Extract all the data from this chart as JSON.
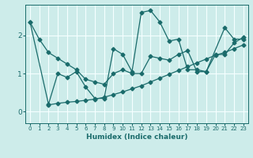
{
  "xlabel": "Humidex (Indice chaleur)",
  "xlim": [
    -0.5,
    23.5
  ],
  "ylim": [
    -0.3,
    2.8
  ],
  "yticks": [
    0,
    1,
    2
  ],
  "xticks": [
    0,
    1,
    2,
    3,
    4,
    5,
    6,
    7,
    8,
    9,
    10,
    11,
    12,
    13,
    14,
    15,
    16,
    17,
    18,
    19,
    20,
    21,
    22,
    23
  ],
  "background_color": "#cdecea",
  "grid_color": "#f5ffff",
  "line_color": "#1a6b6b",
  "line1_x": [
    0,
    1,
    2,
    3,
    4,
    5,
    6,
    7,
    8,
    9,
    10,
    11,
    12,
    13,
    14,
    15,
    16,
    17,
    18,
    19,
    20,
    21,
    22,
    23
  ],
  "line1_y": [
    2.35,
    1.9,
    1.55,
    1.4,
    1.25,
    1.1,
    0.85,
    0.78,
    0.72,
    1.0,
    1.1,
    1.0,
    1.0,
    1.45,
    1.4,
    1.35,
    1.5,
    1.6,
    1.05,
    1.05,
    1.5,
    1.5,
    1.8,
    1.95
  ],
  "line2_x": [
    0,
    2,
    3,
    4,
    5,
    6,
    7,
    8,
    9,
    10,
    11,
    12,
    13,
    14,
    15,
    16,
    17,
    18,
    19,
    21,
    22,
    23
  ],
  "line2_y": [
    2.35,
    0.2,
    1.0,
    0.9,
    1.05,
    0.65,
    0.35,
    0.35,
    1.65,
    1.5,
    1.05,
    2.6,
    2.65,
    2.35,
    1.85,
    1.9,
    1.1,
    1.1,
    1.05,
    2.2,
    1.9,
    1.9
  ],
  "line3_x": [
    2,
    3,
    4,
    5,
    6,
    7,
    8,
    9,
    10,
    11,
    12,
    13,
    14,
    15,
    16,
    17,
    18,
    19,
    20,
    21,
    22,
    23
  ],
  "line3_y": [
    0.18,
    0.22,
    0.25,
    0.27,
    0.3,
    0.33,
    0.38,
    0.45,
    0.52,
    0.6,
    0.68,
    0.78,
    0.88,
    0.98,
    1.08,
    1.18,
    1.28,
    1.38,
    1.48,
    1.55,
    1.65,
    1.75
  ]
}
